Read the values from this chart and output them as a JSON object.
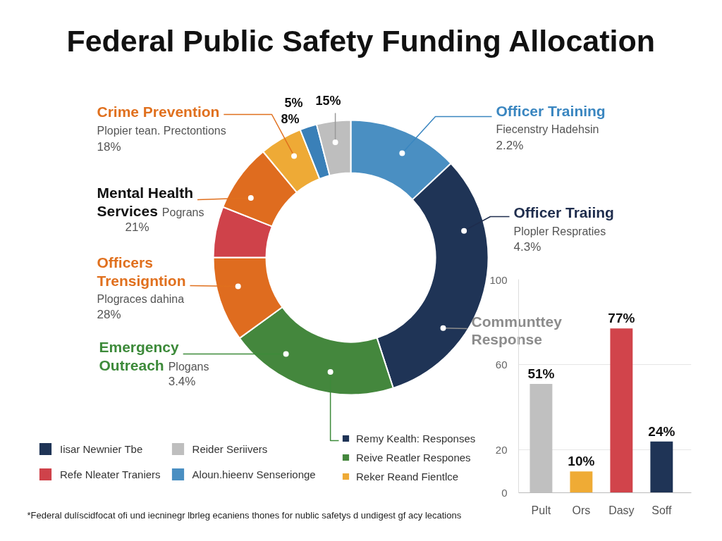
{
  "chart_data": [
    {
      "type": "donut",
      "title": "Federal Public Safety Funding Allocation",
      "categories": [
        "Aloun.hieenv Senserionge",
        "Iisar Newnier Tbe",
        "Reive Reatler Respones",
        null,
        "Refe Nleater Traniers",
        null,
        "Reker Reand Fientlce",
        null,
        "Reider Seriivers"
      ],
      "values": [
        13,
        32,
        20,
        10,
        6,
        8,
        5,
        2,
        4
      ],
      "colors": [
        "#4a8fc2",
        "#1f3456",
        "#44873d",
        "#df6c1f",
        "#cf424a",
        "#df6c1f",
        "#eeaa36",
        "#3a80b8",
        "#bebebe"
      ],
      "legend": "bottom left",
      "annotations": [
        "Crime Prevention",
        "Plopier tean. Prectontions",
        "18%",
        "Mental Health Services",
        "Pograns",
        "21%",
        "Officers Trensigntion",
        "Plograces dahina",
        "28%",
        "Emergency Outreach",
        "Plogans",
        "3.4%",
        "Officer Training",
        "Fiecenstry Hadehsin",
        "2.2%",
        "Officer Traiing",
        "Plopler Respraties",
        "4.3%",
        "Communttey Response",
        "5%",
        "8%",
        "15%",
        "Remy Kealth: Responses",
        "*Federal dulíscidfocat ofi und iecninegr lbrleg ecaniens thones for nublic safetys d undigest gf acy lecations"
      ]
    },
    {
      "type": "bar",
      "categories": [
        "Pult",
        "Ors",
        "Dasy",
        "Soff"
      ],
      "values": [
        51,
        10,
        77,
        24
      ],
      "colors": [
        "#c0c0c0",
        "#efab35",
        "#d1444b",
        "#1f3456"
      ],
      "value_labels": [
        "51%",
        "10%",
        "77%",
        "24%"
      ],
      "ylim": [
        0,
        100
      ],
      "yticks": [
        0,
        20,
        60,
        100
      ],
      "grid": "y"
    }
  ]
}
